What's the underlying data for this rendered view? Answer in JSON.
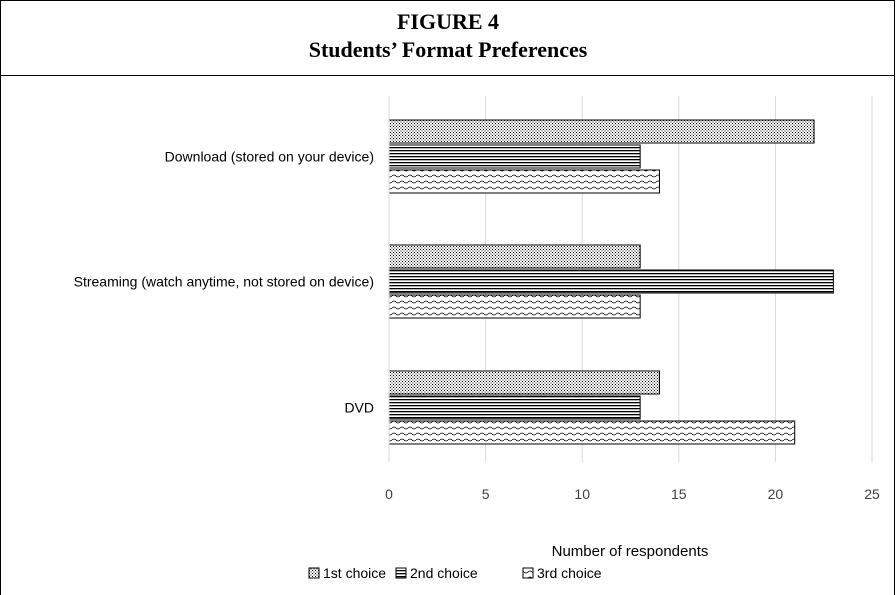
{
  "figure": {
    "label": "FIGURE 4",
    "title": "Students’ Format Preferences"
  },
  "chart_data": {
    "type": "bar",
    "orientation": "horizontal",
    "categories": [
      "Download (stored on your device)",
      "Streaming (watch anytime, not stored on device)",
      "DVD"
    ],
    "series": [
      {
        "name": "1st choice",
        "values": [
          22,
          13,
          14
        ],
        "pattern": "dotted"
      },
      {
        "name": "2nd choice",
        "values": [
          13,
          23,
          13
        ],
        "pattern": "horizontal-lines"
      },
      {
        "name": "3rd choice",
        "values": [
          14,
          13,
          21
        ],
        "pattern": "waves"
      }
    ],
    "xlabel": "Number of respondents",
    "ylabel": "",
    "xlim": [
      0,
      25
    ],
    "xticks": [
      0,
      5,
      10,
      15,
      20,
      25
    ],
    "grid": true,
    "legend_position": "bottom"
  }
}
